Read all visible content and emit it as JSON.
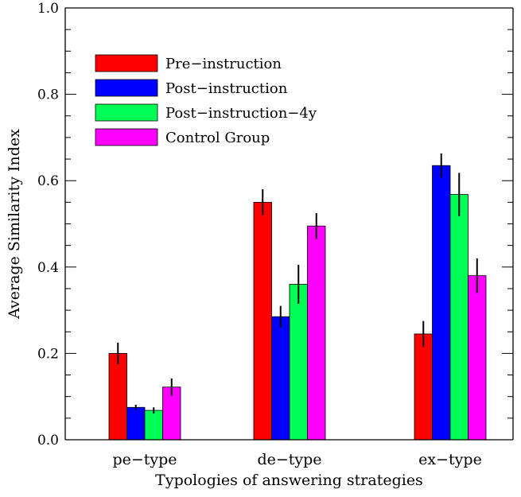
{
  "chart_data": {
    "type": "bar",
    "categories": [
      "pe−type",
      "de−type",
      "ex−type"
    ],
    "series": [
      {
        "name": "Pre−instruction",
        "color": "#ff0000",
        "values": [
          0.2,
          0.55,
          0.245
        ],
        "errors": [
          0.025,
          0.03,
          0.03
        ]
      },
      {
        "name": "Post−instruction",
        "color": "#0000ff",
        "values": [
          0.075,
          0.285,
          0.635
        ],
        "errors": [
          0.006,
          0.025,
          0.028
        ]
      },
      {
        "name": "Post−instruction−4y",
        "color": "#00ff55",
        "values": [
          0.068,
          0.36,
          0.568
        ],
        "errors": [
          0.007,
          0.045,
          0.05
        ]
      },
      {
        "name": "Control Group",
        "color": "#ff00ff",
        "values": [
          0.122,
          0.495,
          0.38
        ],
        "errors": [
          0.02,
          0.03,
          0.04
        ]
      }
    ],
    "xlabel": "Typologies of answering strategies",
    "ylabel": "Average Similarity Index",
    "ylim": [
      0.0,
      1.0
    ],
    "yticks": [
      "0.0",
      "0.2",
      "0.4",
      "0.6",
      "0.8",
      "1.0"
    ],
    "grid": false,
    "legend_position": "top-left"
  }
}
